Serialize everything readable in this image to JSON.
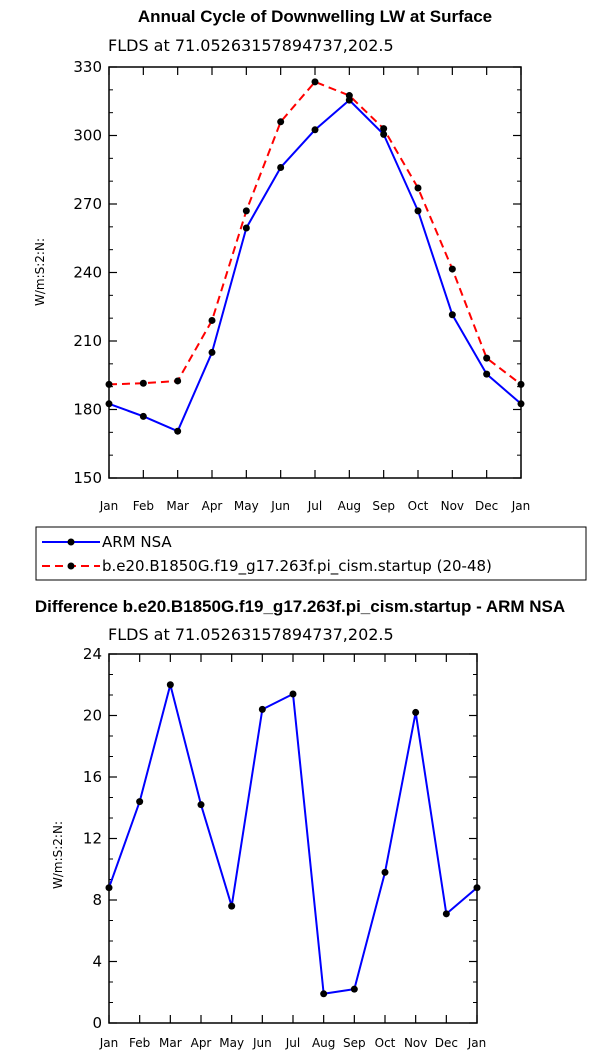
{
  "chart_data": [
    {
      "type": "line",
      "title": "Annual Cycle of Downwelling LW at Surface",
      "subtitle": "FLDS at 71.05263157894737,202.5",
      "xlabel": "",
      "ylabel": "W/m:S:2:N:",
      "categories": [
        "Jan",
        "Feb",
        "Mar",
        "Apr",
        "May",
        "Jun",
        "Jul",
        "Aug",
        "Sep",
        "Oct",
        "Nov",
        "Dec",
        "Jan"
      ],
      "ylim": [
        150,
        330
      ],
      "yticks": [
        "150",
        "180",
        "210",
        "240",
        "270",
        "300",
        "330"
      ],
      "series": [
        {
          "name": "ARM NSA",
          "color": "#0000ff",
          "dash": "solid",
          "values": [
            182.5,
            177,
            170.5,
            205,
            259.5,
            286,
            302.5,
            315.5,
            300.5,
            267,
            221.5,
            195.5,
            182.5
          ]
        },
        {
          "name": "b.e20.B1850G.f19_g17.263f.pi_cism.startup (20-48)",
          "color": "#ff0000",
          "dash": "dashed",
          "values": [
            191,
            191.5,
            192.5,
            219,
            267,
            306,
            323.5,
            317.5,
            303,
            277,
            241.5,
            202.5,
            191
          ]
        }
      ],
      "legend_position": "bottom"
    },
    {
      "type": "line",
      "title": "Difference b.e20.B1850G.f19_g17.263f.pi_cism.startup - ARM NSA",
      "subtitle": "FLDS at 71.05263157894737,202.5",
      "xlabel": "",
      "ylabel": "W/m:S:2:N:",
      "categories": [
        "Jan",
        "Feb",
        "Mar",
        "Apr",
        "May",
        "Jun",
        "Jul",
        "Aug",
        "Sep",
        "Oct",
        "Nov",
        "Dec",
        "Jan"
      ],
      "ylim": [
        0,
        24
      ],
      "yticks": [
        "0",
        "4",
        "8",
        "12",
        "16",
        "20",
        "24"
      ],
      "series": [
        {
          "name": "Difference",
          "color": "#0000ff",
          "dash": "solid",
          "values": [
            8.8,
            14.4,
            22.0,
            14.2,
            7.6,
            20.4,
            21.4,
            1.9,
            2.2,
            9.8,
            20.2,
            7.1,
            8.8
          ]
        }
      ]
    }
  ]
}
